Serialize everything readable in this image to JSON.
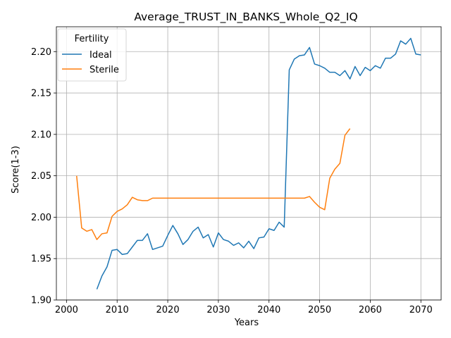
{
  "chart_data": {
    "type": "line",
    "title": "Average_TRUST_IN_BANKS_Whole_Q2_IQ",
    "xlabel": "Years",
    "ylabel": "Score(1-3)",
    "xlim": [
      1998,
      2074
    ],
    "ylim": [
      1.9,
      2.23
    ],
    "x_ticks": [
      2000,
      2010,
      2020,
      2030,
      2040,
      2050,
      2060,
      2070
    ],
    "y_ticks": [
      1.9,
      1.95,
      2.0,
      2.05,
      2.1,
      2.15,
      2.2
    ],
    "grid": true,
    "legend": {
      "title": "Fertility",
      "placement": "upper-left"
    },
    "series": [
      {
        "name": "Ideal",
        "color": "#1f77b4",
        "x": [
          2006,
          2007,
          2008,
          2009,
          2010,
          2011,
          2012,
          2013,
          2014,
          2015,
          2016,
          2017,
          2018,
          2019,
          2020,
          2021,
          2022,
          2023,
          2024,
          2025,
          2026,
          2027,
          2028,
          2029,
          2030,
          2031,
          2032,
          2033,
          2034,
          2035,
          2036,
          2037,
          2038,
          2039,
          2040,
          2041,
          2042,
          2043,
          2044,
          2045,
          2046,
          2047,
          2048,
          2049,
          2050,
          2051,
          2052,
          2053,
          2054,
          2055,
          2056,
          2057,
          2058,
          2059,
          2060,
          2061,
          2062,
          2063,
          2064,
          2065,
          2066,
          2067,
          2068,
          2069,
          2070
        ],
        "y": [
          1.913,
          1.929,
          1.94,
          1.96,
          1.961,
          1.955,
          1.956,
          1.964,
          1.972,
          1.972,
          1.98,
          1.961,
          1.963,
          1.965,
          1.978,
          1.99,
          1.98,
          1.967,
          1.973,
          1.983,
          1.988,
          1.975,
          1.979,
          1.964,
          1.981,
          1.973,
          1.971,
          1.966,
          1.969,
          1.963,
          1.971,
          1.962,
          1.975,
          1.976,
          1.986,
          1.984,
          1.994,
          1.988,
          2.178,
          2.191,
          2.195,
          2.196,
          2.205,
          2.185,
          2.183,
          2.18,
          2.175,
          2.175,
          2.171,
          2.177,
          2.167,
          2.182,
          2.171,
          2.181,
          2.177,
          2.183,
          2.18,
          2.192,
          2.192,
          2.197,
          2.213,
          2.209,
          2.216,
          2.197,
          2.196
        ]
      },
      {
        "name": "Sterile",
        "color": "#ff7f0e",
        "x": [
          2002,
          2003,
          2004,
          2005,
          2006,
          2007,
          2008,
          2009,
          2010,
          2011,
          2012,
          2013,
          2014,
          2015,
          2016,
          2017,
          2018,
          2019,
          2020,
          2021,
          2022,
          2023,
          2024,
          2025,
          2026,
          2027,
          2028,
          2029,
          2030,
          2031,
          2032,
          2033,
          2034,
          2035,
          2036,
          2037,
          2038,
          2039,
          2040,
          2041,
          2042,
          2043,
          2044,
          2045,
          2046,
          2047,
          2048,
          2049,
          2050,
          2051,
          2052,
          2053,
          2054,
          2055,
          2056
        ],
        "y": [
          2.05,
          1.987,
          1.983,
          1.985,
          1.973,
          1.98,
          1.981,
          2.001,
          2.007,
          2.01,
          2.015,
          2.024,
          2.021,
          2.02,
          2.02,
          2.023,
          2.023,
          2.023,
          2.023,
          2.023,
          2.023,
          2.023,
          2.023,
          2.023,
          2.023,
          2.023,
          2.023,
          2.023,
          2.023,
          2.023,
          2.023,
          2.023,
          2.023,
          2.023,
          2.023,
          2.023,
          2.023,
          2.023,
          2.023,
          2.023,
          2.023,
          2.023,
          2.023,
          2.023,
          2.023,
          2.023,
          2.025,
          2.018,
          2.012,
          2.009,
          2.047,
          2.058,
          2.065,
          2.099,
          2.107
        ]
      }
    ]
  }
}
